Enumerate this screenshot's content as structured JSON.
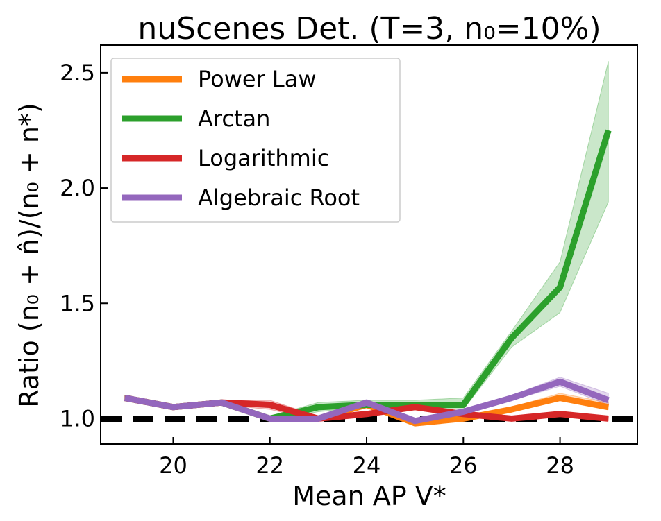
{
  "chart_data": {
    "type": "line",
    "title": "nuScenes Det. (T=3, n₀=10%)",
    "xlabel": "Mean AP V*",
    "ylabel": "Ratio (n₀ + n̂)/(n₀ + n*)",
    "xlim": [
      18.5,
      29.6
    ],
    "ylim": [
      0.89,
      2.62
    ],
    "xticks": [
      20,
      22,
      24,
      26,
      28
    ],
    "xtick_labels": [
      "20",
      "22",
      "24",
      "26",
      "28"
    ],
    "yticks": [
      1.0,
      1.5,
      2.0,
      2.5
    ],
    "ytick_labels": [
      "1.0",
      "1.5",
      "2.0",
      "2.5"
    ],
    "grid": false,
    "legend_position": "top-left",
    "reference_line": 1.0,
    "x": [
      19,
      20,
      21,
      22,
      23,
      24,
      25,
      26,
      27,
      28,
      29
    ],
    "series": [
      {
        "name": "Power Law",
        "color": "#ff7f0e",
        "values": [
          1.09,
          1.05,
          1.07,
          1.0,
          1.0,
          1.06,
          0.98,
          1.0,
          1.04,
          1.09,
          1.05
        ],
        "lower": [
          1.08,
          1.04,
          1.06,
          0.99,
          0.99,
          1.05,
          0.97,
          0.99,
          1.03,
          1.08,
          1.04
        ],
        "upper": [
          1.1,
          1.06,
          1.08,
          1.01,
          1.01,
          1.07,
          0.99,
          1.01,
          1.05,
          1.11,
          1.07
        ]
      },
      {
        "name": "Arctan",
        "color": "#2ca02c",
        "values": [
          1.09,
          1.05,
          1.07,
          1.0,
          1.05,
          1.06,
          1.06,
          1.06,
          1.35,
          1.57,
          2.25
        ],
        "lower": [
          1.08,
          1.04,
          1.06,
          0.99,
          1.03,
          1.05,
          1.05,
          1.04,
          1.31,
          1.46,
          1.94
        ],
        "upper": [
          1.1,
          1.06,
          1.08,
          1.01,
          1.07,
          1.08,
          1.08,
          1.09,
          1.38,
          1.68,
          2.55
        ]
      },
      {
        "name": "Logarithmic",
        "color": "#d62728",
        "values": [
          1.09,
          1.05,
          1.07,
          1.06,
          1.0,
          1.02,
          1.05,
          1.02,
          1.0,
          1.02,
          1.0
        ],
        "lower": [
          1.08,
          1.04,
          1.06,
          1.04,
          0.99,
          1.01,
          1.04,
          1.01,
          0.99,
          1.01,
          0.99
        ],
        "upper": [
          1.1,
          1.06,
          1.08,
          1.08,
          1.01,
          1.03,
          1.06,
          1.03,
          1.01,
          1.03,
          1.01
        ]
      },
      {
        "name": "Algebraic Root",
        "color": "#9467bd",
        "values": [
          1.09,
          1.05,
          1.07,
          1.0,
          1.0,
          1.07,
          0.99,
          1.03,
          1.09,
          1.16,
          1.08
        ],
        "lower": [
          1.08,
          1.04,
          1.06,
          0.99,
          0.99,
          1.06,
          0.98,
          1.02,
          1.08,
          1.14,
          1.06
        ],
        "upper": [
          1.1,
          1.06,
          1.08,
          1.01,
          1.01,
          1.08,
          1.0,
          1.04,
          1.1,
          1.18,
          1.11
        ]
      }
    ]
  }
}
